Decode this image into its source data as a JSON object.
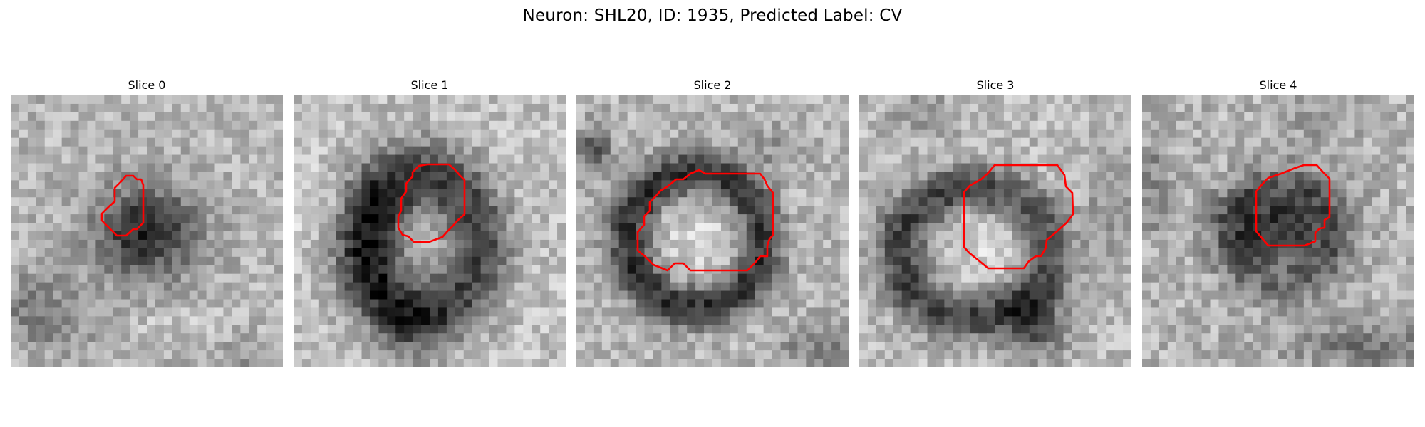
{
  "figure": {
    "title": "Neuron: SHL20, ID: 1935, Predicted Label: CV"
  },
  "colors": {
    "contour": "#ff0000"
  },
  "slices": [
    {
      "title": "Slice 0"
    },
    {
      "title": "Slice 1"
    },
    {
      "title": "Slice 2"
    },
    {
      "title": "Slice 3"
    },
    {
      "title": "Slice 4"
    }
  ]
}
